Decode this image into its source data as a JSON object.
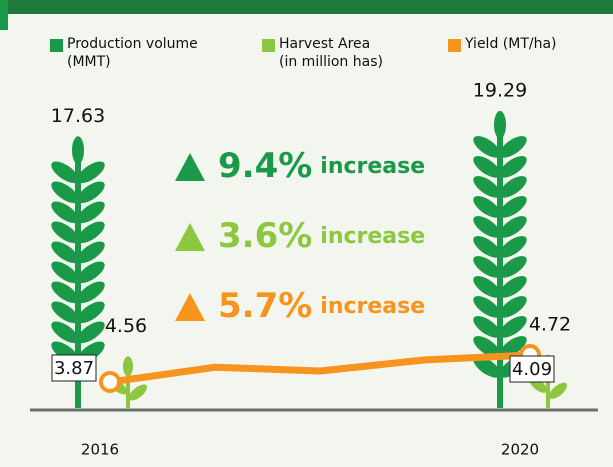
{
  "chart_data": {
    "type": "pictograph",
    "categories": [
      "2016",
      null,
      null,
      null,
      "2020"
    ],
    "series": [
      {
        "name": "Production volume\n(MMT)",
        "color": "#1a9a48",
        "values": [
          17.63,
          null,
          null,
          null,
          19.29
        ]
      },
      {
        "name": "Harvest Area\n(in million has)",
        "color": "#8dc63f",
        "values": [
          4.56,
          null,
          null,
          null,
          4.72
        ]
      },
      {
        "name": "Yield (MT/ha)",
        "color": "#f7941d",
        "values": [
          3.87,
          3.99,
          3.96,
          4.05,
          4.09
        ]
      }
    ],
    "changes": {
      "values": [
        9.4,
        3.6,
        5.7
      ],
      "value_labels": [
        "9.4%",
        "3.6%",
        "5.7%"
      ],
      "suffix": [
        "increase",
        "increase",
        "increase"
      ]
    }
  }
}
